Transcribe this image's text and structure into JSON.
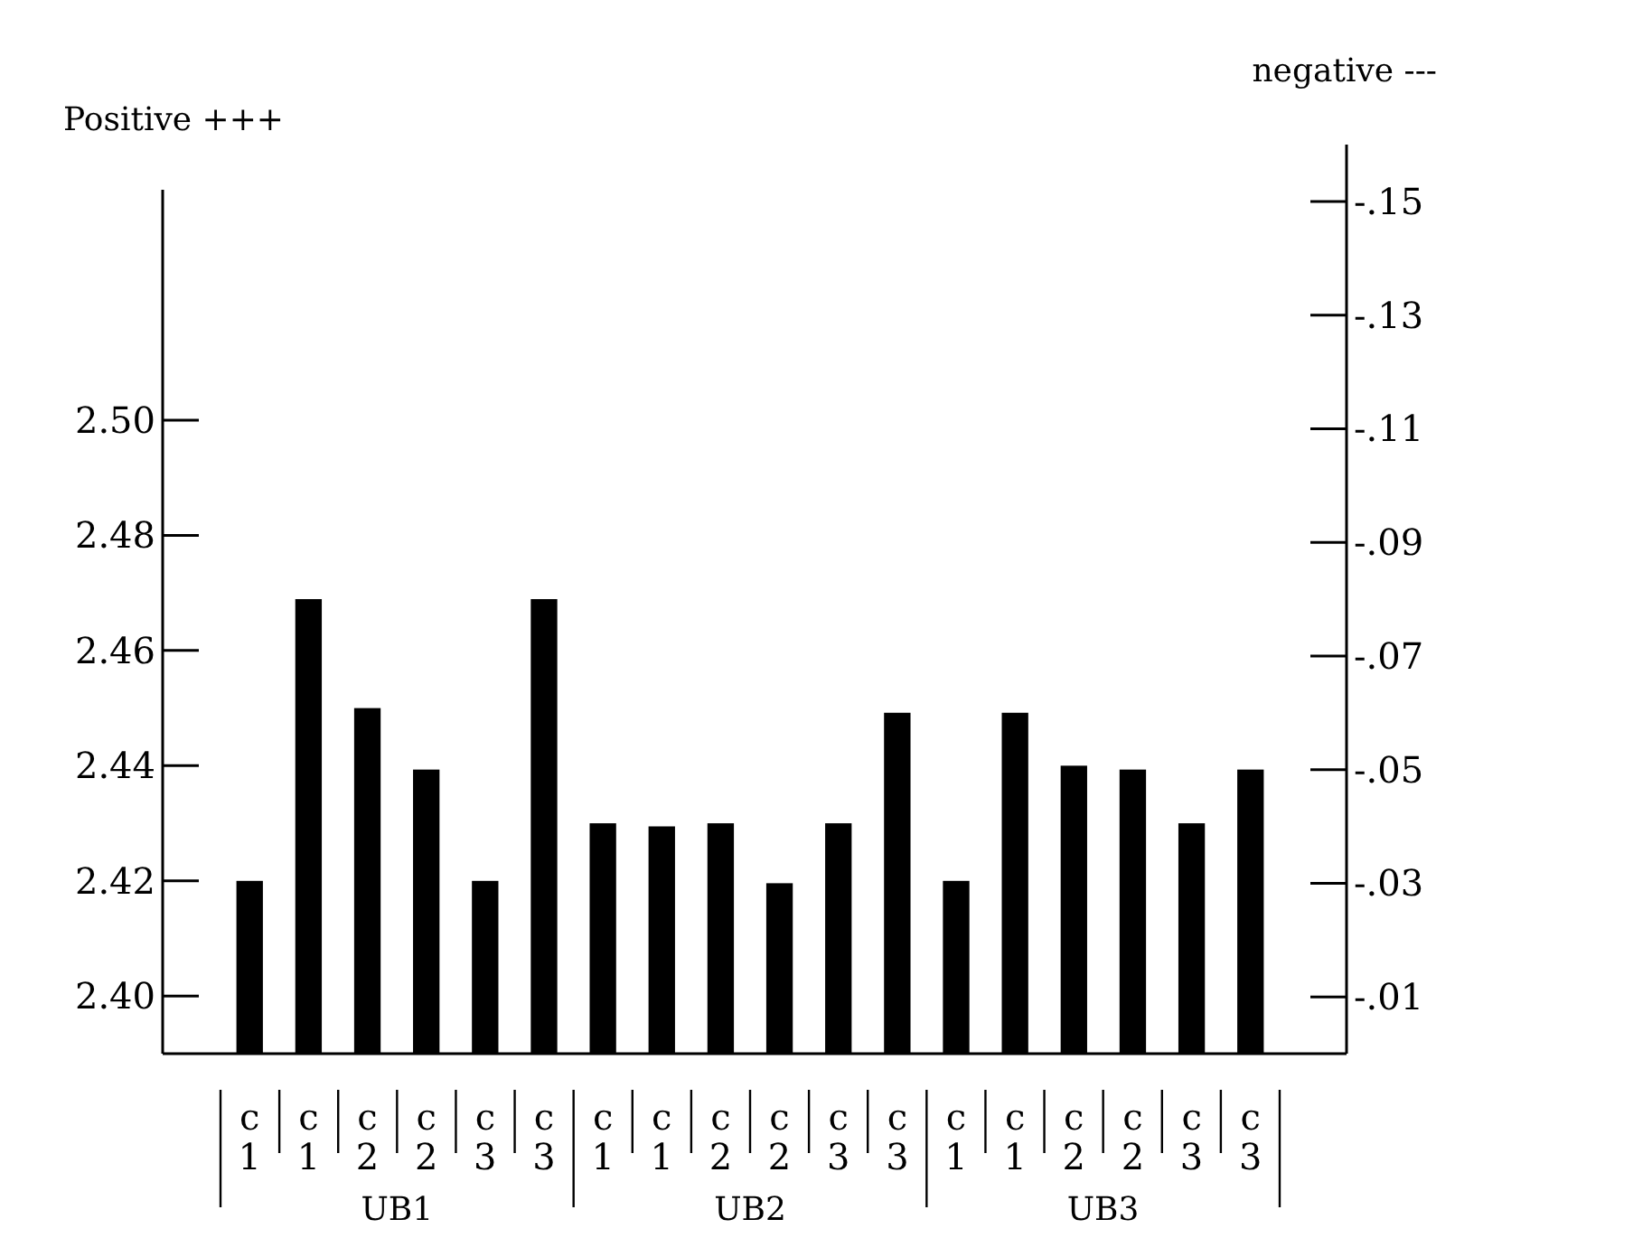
{
  "chart_data": {
    "type": "bar",
    "ylabel": "Positive +++",
    "y2label": "negative ---",
    "categories": [
      "c1",
      "c1",
      "c2",
      "c2",
      "c3",
      "c3",
      "c1",
      "c1",
      "c2",
      "c2",
      "c3",
      "c3",
      "c1",
      "c1",
      "c2",
      "c2",
      "c3",
      "c3"
    ],
    "series": [
      {
        "color": "#000000",
        "values": [
          2.42,
          null,
          2.45,
          null,
          2.42,
          null,
          2.43,
          null,
          2.43,
          null,
          2.43,
          null,
          2.42,
          null,
          2.44,
          null,
          2.43,
          null
        ]
      },
      {
        "color": "#000000",
        "axis": "y2",
        "values": [
          null,
          -0.08,
          null,
          -0.05,
          null,
          -0.08,
          null,
          -0.04,
          null,
          -0.03,
          null,
          -0.06,
          null,
          -0.06,
          null,
          -0.05,
          null,
          -0.05
        ]
      }
    ],
    "ylim": [
      2.39,
      2.54
    ],
    "yticks": [
      {
        "value": 2.4,
        "label": "2.40"
      },
      {
        "value": 2.42,
        "label": "2.42"
      },
      {
        "value": 2.44,
        "label": "2.44"
      },
      {
        "value": 2.46,
        "label": "2.46"
      },
      {
        "value": 2.48,
        "label": "2.48"
      },
      {
        "value": 2.5,
        "label": "2.50"
      }
    ],
    "y2lim": [
      0,
      -0.16
    ],
    "y2ticks": [
      {
        "value": -0.01,
        "label": "-.01"
      },
      {
        "value": -0.03,
        "label": "-.03"
      },
      {
        "value": -0.05,
        "label": "-.05"
      },
      {
        "value": -0.07,
        "label": "-.07"
      },
      {
        "value": -0.09,
        "label": "-.09"
      },
      {
        "value": -0.11,
        "label": "-.11"
      },
      {
        "value": -0.13,
        "label": "-.13"
      },
      {
        "value": -0.15,
        "label": "-.15"
      }
    ],
    "annotations": [
      "UB1",
      "UB2",
      "UB3"
    ]
  }
}
